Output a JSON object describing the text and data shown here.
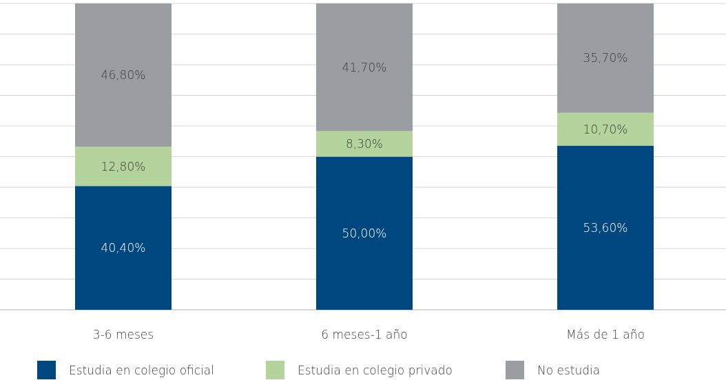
{
  "chart_data": {
    "type": "bar",
    "stacked": true,
    "categories": [
      "3-6 meses",
      "6 meses-1 año",
      "Más de 1 año"
    ],
    "series": [
      {
        "name": "Estudia en colegio oficial",
        "color": "#00467f",
        "values": [
          40.4,
          50.0,
          53.6
        ],
        "value_labels": [
          "40,40%",
          "50,00%",
          "53,60%"
        ]
      },
      {
        "name": "Estudia en colegio privado",
        "color": "#b5d39c",
        "values": [
          12.8,
          8.3,
          10.7
        ],
        "value_labels": [
          "12,80%",
          "8,30%",
          "10,70%"
        ]
      },
      {
        "name": "No estudia",
        "color": "#9a9ea3",
        "values": [
          46.8,
          41.7,
          35.7
        ],
        "value_labels": [
          "46,80%",
          "41,70%",
          "35,70%"
        ]
      }
    ],
    "ylim": [
      0,
      100
    ],
    "yticks": [
      {
        "value": 0,
        "label": null
      },
      {
        "value": 10,
        "label": null
      },
      {
        "value": 20,
        "label": null
      },
      {
        "value": 30,
        "label": null
      },
      {
        "value": 40,
        "label": null
      },
      {
        "value": 50,
        "label": null
      },
      {
        "value": 60,
        "label": null
      },
      {
        "value": 70,
        "label": null
      },
      {
        "value": 80,
        "label": null
      },
      {
        "value": 90,
        "label": null
      },
      {
        "value": 100,
        "label": null
      }
    ],
    "grid": "y",
    "tick_labels": "x",
    "legend": "bottom"
  }
}
